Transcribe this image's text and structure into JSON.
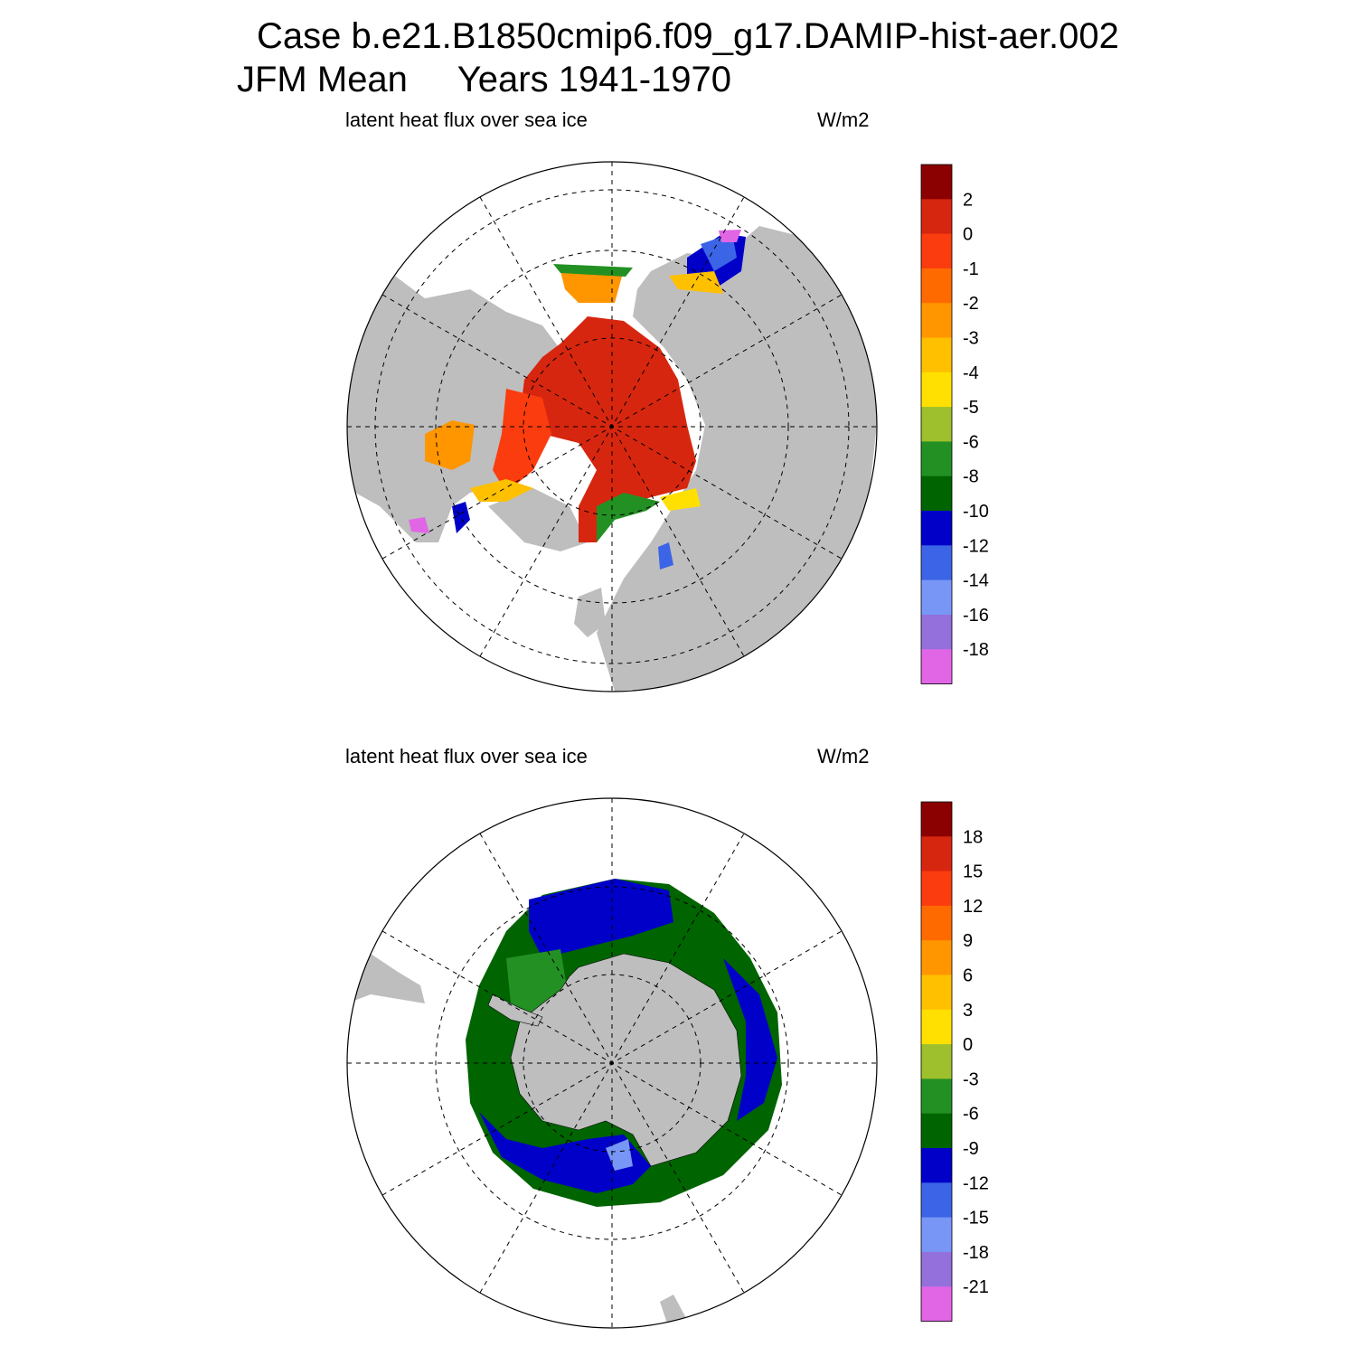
{
  "title": {
    "line1": "Case b.e21.B1850cmip6.f09_g17.DAMIP-hist-aer.002",
    "line2": "JFM Mean     Years 1941-1970"
  },
  "colors": {
    "land": "#bebebe",
    "ocean": "#ffffff",
    "grid": "#000000",
    "palette": [
      "#8b0000",
      "#d7260f",
      "#fa3c0f",
      "#ff6a00",
      "#ff9600",
      "#ffc000",
      "#ffe000",
      "#9dc02c",
      "#239023",
      "#006400",
      "#0000c8",
      "#3c64e6",
      "#7896f5",
      "#9370db",
      "#e066e6"
    ]
  },
  "chart_data": [
    {
      "type": "heatmap",
      "hemisphere": "north",
      "title_left": "latent heat flux over sea ice",
      "title_right": "W/m2",
      "colorbar_levels": [
        "2",
        "0",
        "-1",
        "-2",
        "-3",
        "-4",
        "-5",
        "-6",
        "-8",
        "-10",
        "-12",
        "-14",
        "-16",
        "-18"
      ],
      "dominant_values": {
        "central_arctic": "0 to 2",
        "marginal_ice_zones": "-5 to -18"
      }
    },
    {
      "type": "heatmap",
      "hemisphere": "south",
      "title_left": "latent heat flux over sea ice",
      "title_right": "W/m2",
      "colorbar_levels": [
        "18",
        "15",
        "12",
        "9",
        "6",
        "3",
        "0",
        "-3",
        "-6",
        "-9",
        "-12",
        "-15",
        "-18",
        "-21"
      ],
      "dominant_values": {
        "weddell_and_ross_outer": "-9 to -12",
        "inner_pack": "-3 to -9"
      }
    }
  ]
}
